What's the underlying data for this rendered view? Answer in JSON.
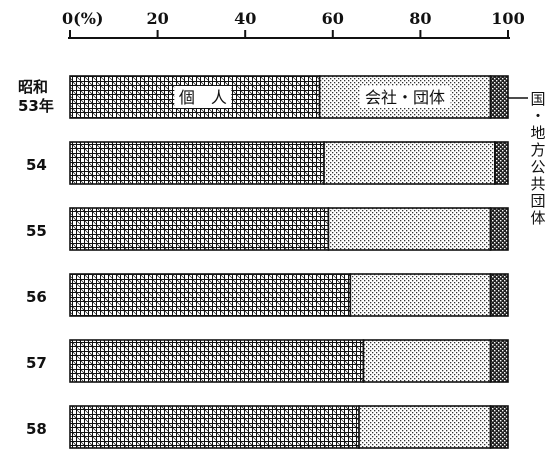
{
  "chart_data": {
    "type": "bar",
    "orientation": "horizontal",
    "stacked": true,
    "categories": [
      "昭和53年",
      "54",
      "55",
      "56",
      "57",
      "58"
    ],
    "series": [
      {
        "name": "個　人",
        "values": [
          57,
          58,
          59,
          64,
          67,
          66
        ]
      },
      {
        "name": "会社・団体",
        "values": [
          39,
          39,
          37,
          32,
          29,
          30
        ]
      },
      {
        "name": "国・地方公共団体",
        "values": [
          4,
          3,
          4,
          4,
          4,
          4
        ]
      }
    ],
    "x_ticks": [
      "0(%)",
      "20",
      "40",
      "60",
      "80",
      "100"
    ],
    "xlim": [
      0,
      100
    ],
    "legend": "labels inside first bar and at right"
  },
  "labels": {
    "first_row_line1": "昭和",
    "first_row_line2": "53年",
    "side_label_chars": [
      "国",
      "・",
      "地",
      "方",
      "公",
      "共",
      "団",
      "体"
    ]
  },
  "colors": {
    "ink": "#111111",
    "paper": "#ffffff"
  }
}
